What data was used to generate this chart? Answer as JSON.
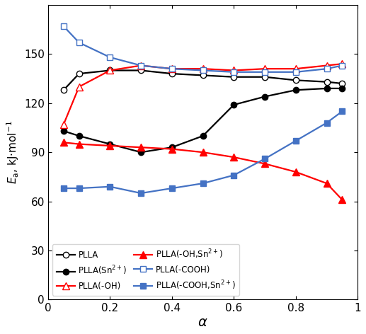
{
  "alpha": [
    0.05,
    0.1,
    0.2,
    0.3,
    0.4,
    0.5,
    0.6,
    0.7,
    0.8,
    0.9,
    0.95
  ],
  "PLLA": [
    128,
    138,
    140,
    140,
    138,
    137,
    136,
    136,
    134,
    133,
    132
  ],
  "PLLA_Sn": [
    103,
    100,
    95,
    90,
    93,
    100,
    119,
    124,
    128,
    129,
    129
  ],
  "PLLA_OH": [
    107,
    130,
    140,
    143,
    141,
    141,
    140,
    141,
    141,
    143,
    144
  ],
  "PLLA_OH_Sn": [
    96,
    95,
    94,
    93,
    92,
    90,
    87,
    83,
    78,
    71,
    61
  ],
  "PLLA_COOH": [
    167,
    157,
    148,
    143,
    141,
    140,
    139,
    139,
    139,
    141,
    143
  ],
  "PLLA_COOH_Sn": [
    68,
    68,
    69,
    65,
    68,
    71,
    76,
    86,
    97,
    108,
    115
  ],
  "color_black": "#000000",
  "color_red": "#FF0000",
  "color_blue": "#4472C4",
  "legend_labels": [
    "PLLA",
    "PLLA(Sn$^{2+}$)",
    "PLLA(-OH)",
    "PLLA(-OH,Sn$^{2+}$)",
    "PLLA(-COOH)",
    "PLLA(-COOH,Sn$^{2+}$)"
  ],
  "xlim": [
    0,
    1.0
  ],
  "ylim": [
    0,
    180
  ],
  "yticks": [
    0,
    30,
    60,
    90,
    120,
    150
  ],
  "xticks": [
    0,
    0.2,
    0.4,
    0.6,
    0.8,
    1.0
  ]
}
